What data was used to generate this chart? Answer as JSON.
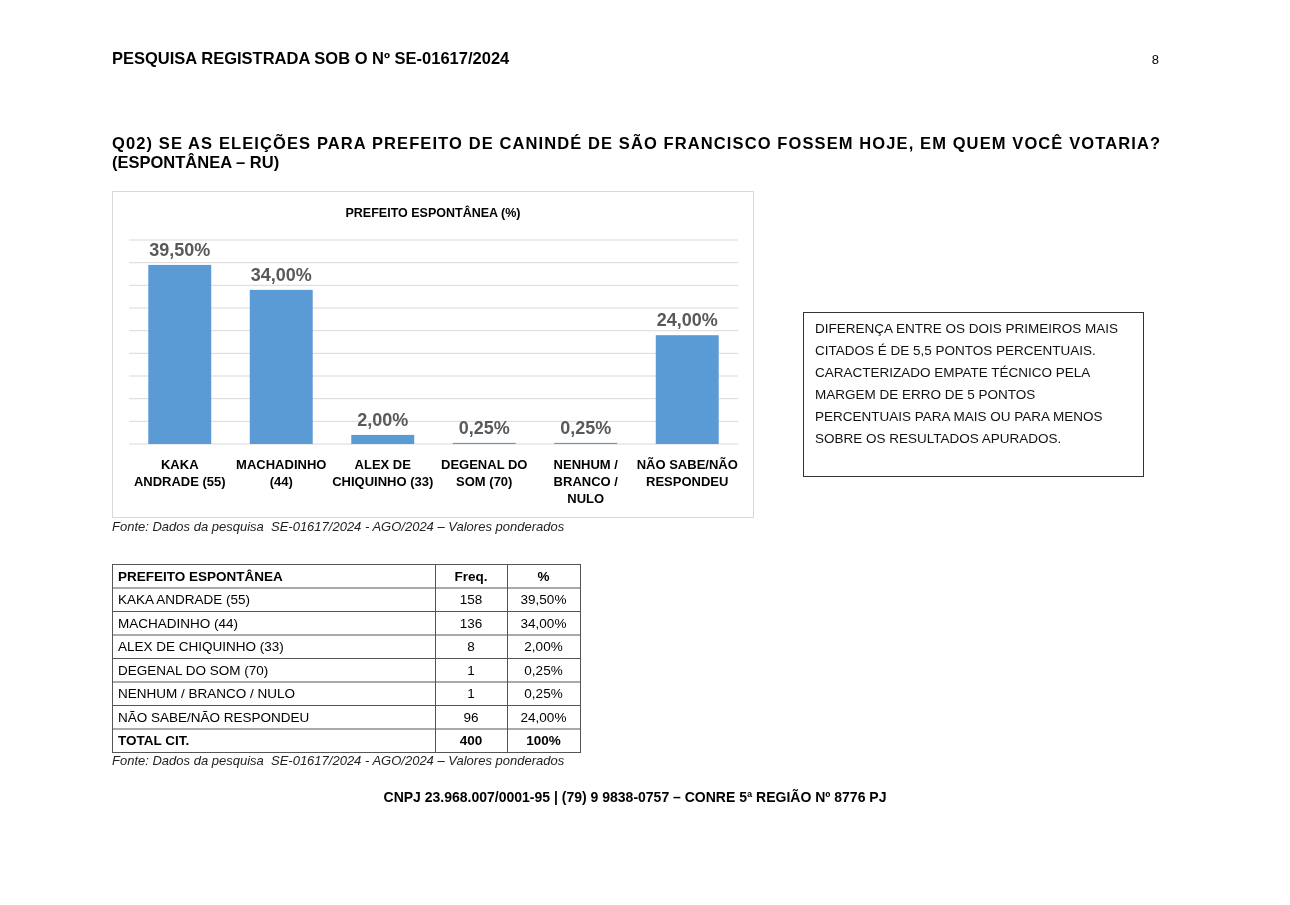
{
  "chart_data": [
    {
      "type": "bar",
      "title": "PREFEITO ESPONTÂNEA (%)",
      "categories": [
        "KAKA ANDRADE (55)",
        "MACHADINHO (44)",
        "ALEX DE CHIQUINHO (33)",
        "DEGENAL DO SOM (70)",
        "NENHUM / BRANCO / NULO",
        "NÃO SABE/NÃO RESPONDEU"
      ],
      "values": [
        39.5,
        34,
        2,
        0.25,
        0.25,
        24
      ],
      "value_labels": [
        "39,50%",
        "34,00%",
        "2,00%",
        "0,25%",
        "0,25%",
        "24,00%"
      ],
      "color": "#5b9bd5",
      "ylim": [
        0,
        45
      ],
      "yticks": [
        {
          "value": 0,
          "label": null
        },
        {
          "value": 5,
          "label": null
        },
        {
          "value": 10,
          "label": null
        },
        {
          "value": 15,
          "label": null
        },
        {
          "value": 20,
          "label": null
        },
        {
          "value": 25,
          "label": null
        },
        {
          "value": 30,
          "label": null
        },
        {
          "value": 35,
          "label": null
        },
        {
          "value": 40,
          "label": null
        },
        {
          "value": 45,
          "label": null
        }
      ],
      "grid": "y",
      "tick_labels": "x",
      "annotations": [
        "PESQUISA REGISTRADA SOB O Nº SE-01617/2024",
        "8",
        "Q02) SE AS ELEIÇÕES PARA PREFEITO DE CANINDÉ DE SÃO FRANCISCO FOSSEM HOJE, EM QUEM VOCÊ VOTARIA? (ESPONTÂNEA – RU)",
        "Fonte: Dados da pesquisa  SE-01617/2024 - AGO/2024 – Valores ponderados"
      ]
    },
    {
      "type": "other",
      "annotations": [
        "DIFERENÇA ENTRE OS DOIS PRIMEIROS MAIS CITADOS É DE 5,5 PONTOS PERCENTUAIS. CARACTERIZADO EMPATE TÉCNICO PELA MARGEM DE ERRO DE 5 PONTOS PERCENTUAIS PARA MAIS OU PARA MENOS SOBRE OS RESULTADOS APURADOS."
      ]
    },
    {
      "type": "other",
      "title": "PREFEITO ESPONTÂNEA",
      "categories": [
        "KAKA ANDRADE (55)",
        "MACHADINHO (44)",
        "ALEX DE CHIQUINHO (33)",
        "DEGENAL DO SOM (70)",
        "NENHUM / BRANCO / NULO",
        "NÃO SABE/NÃO RESPONDEU",
        "TOTAL CIT."
      ],
      "series": [
        {
          "name": "Freq.",
          "values": [
            158,
            136,
            8,
            1,
            1,
            96,
            400
          ]
        },
        {
          "name": "%",
          "values": [
            39.5,
            34,
            2,
            0.25,
            0.25,
            24,
            100
          ],
          "value_labels": [
            "39,50%",
            "34,00%",
            "2,00%",
            "0,25%",
            "0,25%",
            "24,00%",
            "100%"
          ]
        }
      ],
      "data_labels": true,
      "annotations": [
        "Fonte: Dados da pesquisa  SE-01617/2024 - AGO/2024 – Valores ponderados",
        "CNPJ 23.968.007/0001-95 | (79) 9 9838-0757 – CONRE 5ª REGIÃO Nº 8776 PJ"
      ]
    }
  ]
}
